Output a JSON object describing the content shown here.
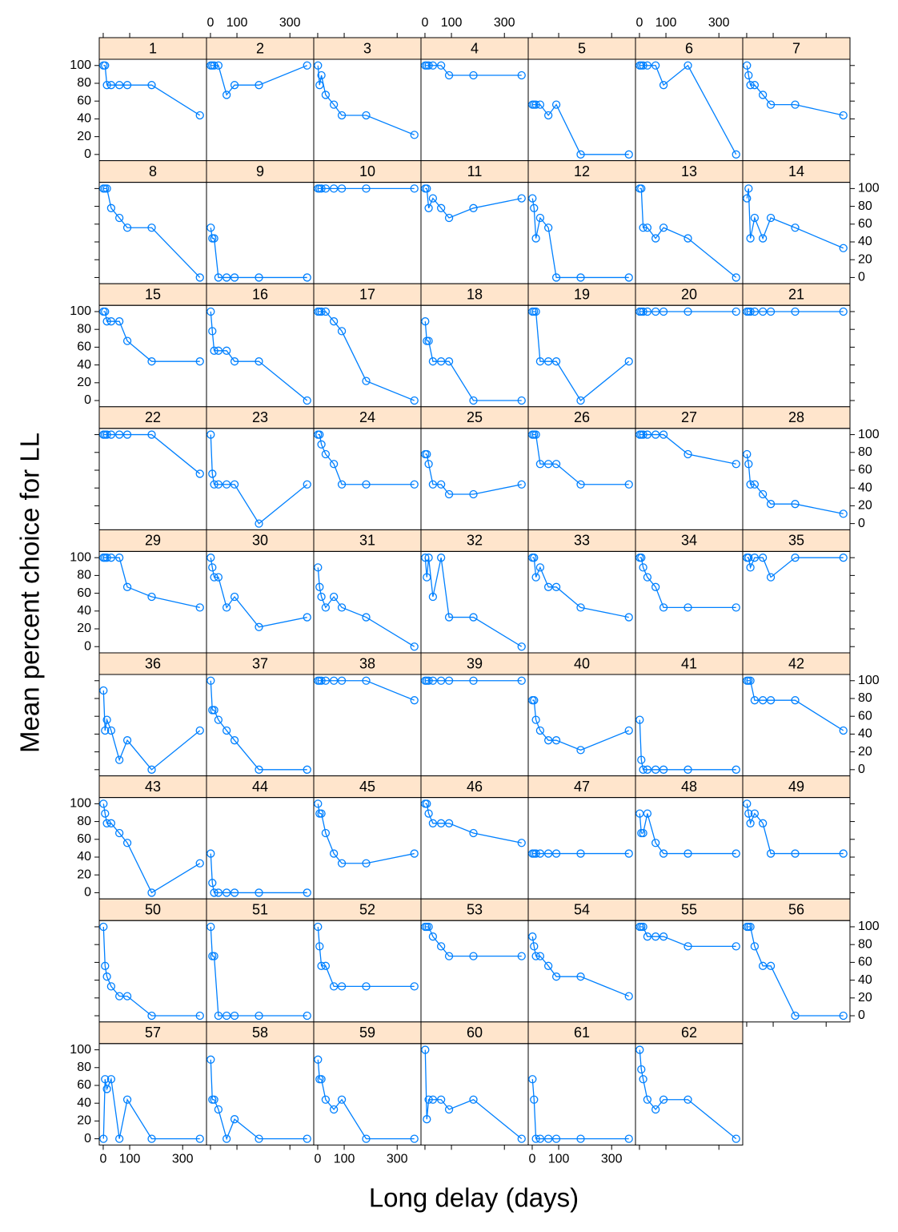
{
  "chart_data": {
    "type": "line",
    "xlabel": "Long delay (days)",
    "ylabel": "Mean percent choice for LL",
    "x": [
      1,
      7,
      14,
      30,
      61,
      91,
      183,
      365
    ],
    "xlim": [
      -15,
      390
    ],
    "xticks": [
      0,
      100,
      300
    ],
    "ylim": [
      -7,
      107
    ],
    "yticks": [
      0,
      20,
      40,
      60,
      80,
      100
    ],
    "color": "#0080ff",
    "strip_color": "#ffe5cc",
    "columns": 7,
    "panels": [
      {
        "name": "1",
        "values": [
          100,
          100,
          78,
          78,
          78,
          78,
          78,
          44
        ]
      },
      {
        "name": "2",
        "values": [
          100,
          100,
          100,
          100,
          67,
          78,
          78,
          100
        ]
      },
      {
        "name": "3",
        "values": [
          100,
          78,
          89,
          67,
          56,
          44,
          44,
          22
        ]
      },
      {
        "name": "4",
        "values": [
          100,
          100,
          100,
          100,
          100,
          89,
          89,
          89
        ]
      },
      {
        "name": "5",
        "values": [
          56,
          56,
          56,
          56,
          44,
          56,
          0,
          0
        ]
      },
      {
        "name": "6",
        "values": [
          100,
          100,
          100,
          100,
          100,
          78,
          100,
          0
        ]
      },
      {
        "name": "7",
        "values": [
          100,
          89,
          78,
          78,
          67,
          56,
          56,
          44
        ]
      },
      {
        "name": "8",
        "values": [
          100,
          100,
          100,
          78,
          67,
          56,
          56,
          0
        ]
      },
      {
        "name": "9",
        "values": [
          56,
          44,
          44,
          0,
          0,
          0,
          0,
          0
        ]
      },
      {
        "name": "10",
        "values": [
          100,
          100,
          100,
          100,
          100,
          100,
          100,
          100
        ]
      },
      {
        "name": "11",
        "values": [
          100,
          100,
          78,
          89,
          78,
          67,
          78,
          89
        ]
      },
      {
        "name": "12",
        "values": [
          89,
          78,
          44,
          67,
          56,
          0,
          0,
          0
        ]
      },
      {
        "name": "13",
        "values": [
          100,
          100,
          56,
          56,
          44,
          56,
          44,
          0
        ]
      },
      {
        "name": "14",
        "values": [
          89,
          100,
          44,
          67,
          44,
          67,
          56,
          33
        ]
      },
      {
        "name": "15",
        "values": [
          100,
          100,
          89,
          89,
          89,
          67,
          44,
          44
        ]
      },
      {
        "name": "16",
        "values": [
          100,
          78,
          56,
          56,
          56,
          44,
          44,
          0
        ]
      },
      {
        "name": "17",
        "values": [
          100,
          100,
          100,
          100,
          89,
          78,
          22,
          0
        ]
      },
      {
        "name": "18",
        "values": [
          89,
          67,
          67,
          44,
          44,
          44,
          0,
          0
        ]
      },
      {
        "name": "19",
        "values": [
          100,
          100,
          100,
          44,
          44,
          44,
          0,
          44
        ]
      },
      {
        "name": "20",
        "values": [
          100,
          100,
          100,
          100,
          100,
          100,
          100,
          100
        ]
      },
      {
        "name": "21",
        "values": [
          100,
          100,
          100,
          100,
          100,
          100,
          100,
          100
        ]
      },
      {
        "name": "22",
        "values": [
          100,
          100,
          100,
          100,
          100,
          100,
          100,
          56
        ]
      },
      {
        "name": "23",
        "values": [
          100,
          56,
          44,
          44,
          44,
          44,
          0,
          44
        ]
      },
      {
        "name": "24",
        "values": [
          100,
          100,
          89,
          78,
          67,
          44,
          44,
          44
        ]
      },
      {
        "name": "25",
        "values": [
          78,
          78,
          67,
          44,
          44,
          33,
          33,
          44
        ]
      },
      {
        "name": "26",
        "values": [
          100,
          100,
          100,
          67,
          67,
          67,
          44,
          44
        ]
      },
      {
        "name": "27",
        "values": [
          100,
          100,
          100,
          100,
          100,
          100,
          78,
          67
        ]
      },
      {
        "name": "28",
        "values": [
          78,
          67,
          44,
          44,
          33,
          22,
          22,
          11
        ]
      },
      {
        "name": "29",
        "values": [
          100,
          100,
          100,
          100,
          100,
          67,
          56,
          44
        ]
      },
      {
        "name": "30",
        "values": [
          100,
          89,
          78,
          78,
          44,
          56,
          22,
          33
        ]
      },
      {
        "name": "31",
        "values": [
          89,
          67,
          56,
          44,
          56,
          44,
          33,
          0
        ]
      },
      {
        "name": "32",
        "values": [
          100,
          78,
          100,
          56,
          100,
          33,
          33,
          0
        ]
      },
      {
        "name": "33",
        "values": [
          100,
          100,
          78,
          89,
          67,
          67,
          44,
          33
        ]
      },
      {
        "name": "34",
        "values": [
          100,
          100,
          89,
          78,
          67,
          44,
          44,
          44
        ]
      },
      {
        "name": "35",
        "values": [
          100,
          100,
          89,
          100,
          100,
          78,
          100,
          100
        ]
      },
      {
        "name": "36",
        "values": [
          89,
          44,
          56,
          44,
          11,
          33,
          0,
          44
        ]
      },
      {
        "name": "37",
        "values": [
          100,
          67,
          67,
          56,
          44,
          33,
          0,
          0
        ]
      },
      {
        "name": "38",
        "values": [
          100,
          100,
          100,
          100,
          100,
          100,
          100,
          78
        ]
      },
      {
        "name": "39",
        "values": [
          100,
          100,
          100,
          100,
          100,
          100,
          100,
          100
        ]
      },
      {
        "name": "40",
        "values": [
          78,
          78,
          56,
          44,
          33,
          33,
          22,
          44
        ]
      },
      {
        "name": "41",
        "values": [
          56,
          11,
          0,
          0,
          0,
          0,
          0,
          0
        ]
      },
      {
        "name": "42",
        "values": [
          100,
          100,
          100,
          78,
          78,
          78,
          78,
          44
        ]
      },
      {
        "name": "43",
        "values": [
          100,
          89,
          78,
          78,
          67,
          56,
          0,
          33
        ]
      },
      {
        "name": "44",
        "values": [
          44,
          11,
          0,
          0,
          0,
          0,
          0,
          0
        ]
      },
      {
        "name": "45",
        "values": [
          100,
          89,
          89,
          67,
          44,
          33,
          33,
          44
        ]
      },
      {
        "name": "46",
        "values": [
          100,
          100,
          89,
          78,
          78,
          78,
          67,
          56
        ]
      },
      {
        "name": "47",
        "values": [
          44,
          44,
          44,
          44,
          44,
          44,
          44,
          44
        ]
      },
      {
        "name": "48",
        "values": [
          89,
          67,
          67,
          89,
          56,
          44,
          44,
          44
        ]
      },
      {
        "name": "49",
        "values": [
          100,
          89,
          78,
          89,
          78,
          44,
          44,
          44
        ]
      },
      {
        "name": "50",
        "values": [
          100,
          56,
          44,
          33,
          22,
          22,
          0,
          0
        ]
      },
      {
        "name": "51",
        "values": [
          100,
          67,
          67,
          0,
          0,
          0,
          0,
          0
        ]
      },
      {
        "name": "52",
        "values": [
          100,
          78,
          56,
          56,
          33,
          33,
          33,
          33
        ]
      },
      {
        "name": "53",
        "values": [
          100,
          100,
          100,
          89,
          78,
          67,
          67,
          67
        ]
      },
      {
        "name": "54",
        "values": [
          89,
          78,
          67,
          67,
          56,
          44,
          44,
          22
        ]
      },
      {
        "name": "55",
        "values": [
          100,
          100,
          100,
          89,
          89,
          89,
          78,
          78
        ]
      },
      {
        "name": "56",
        "values": [
          100,
          100,
          100,
          78,
          56,
          56,
          0,
          0
        ]
      },
      {
        "name": "57",
        "values": [
          0,
          67,
          56,
          67,
          0,
          44,
          0,
          0
        ]
      },
      {
        "name": "58",
        "values": [
          89,
          44,
          44,
          33,
          0,
          22,
          0,
          0
        ]
      },
      {
        "name": "59",
        "values": [
          89,
          67,
          67,
          44,
          33,
          44,
          0,
          0
        ]
      },
      {
        "name": "60",
        "values": [
          100,
          22,
          44,
          44,
          44,
          33,
          44,
          0
        ]
      },
      {
        "name": "61",
        "values": [
          67,
          44,
          0,
          0,
          0,
          0,
          0,
          0
        ]
      },
      {
        "name": "62",
        "values": [
          100,
          78,
          67,
          44,
          33,
          44,
          44,
          0
        ]
      }
    ]
  }
}
